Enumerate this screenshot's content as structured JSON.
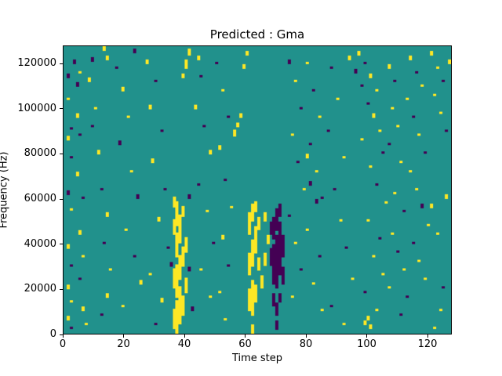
{
  "chart_data": {
    "type": "heatmap",
    "title": "Predicted : Gma",
    "xlabel": "Time step",
    "ylabel": "Frequency (Hz)",
    "n_time": 128,
    "n_freq": 128,
    "hz_per_bin": 1000,
    "x_range": [
      0,
      128
    ],
    "y_range": [
      0,
      128000
    ],
    "x_ticks": [
      0,
      20,
      40,
      60,
      80,
      100,
      120
    ],
    "y_ticks": [
      0,
      20000,
      40000,
      60000,
      80000,
      100000,
      120000
    ],
    "legend": "none",
    "grid": false,
    "colors": {
      "background": "#21918c",
      "high": "#fde725",
      "low": "#440154",
      "axis": "#000000",
      "figure_background": "#ffffff"
    },
    "cells_format": "[time_step, freq_bin_start, freq_bin_end_inclusive, value] where value 1 = high (yellow), -1 = low (purple); frequency Hz = bin * 1000",
    "cells": [
      [
        1,
        114,
        115,
        -1
      ],
      [
        1,
        104,
        104,
        1
      ],
      [
        2,
        91,
        91,
        -1
      ],
      [
        1,
        86,
        87,
        1
      ],
      [
        2,
        78,
        78,
        -1
      ],
      [
        1,
        62,
        63,
        -1
      ],
      [
        2,
        55,
        55,
        1
      ],
      [
        1,
        38,
        39,
        1
      ],
      [
        2,
        30,
        30,
        -1
      ],
      [
        1,
        20,
        21,
        1
      ],
      [
        2,
        14,
        14,
        1
      ],
      [
        1,
        6,
        7,
        1
      ],
      [
        2,
        2,
        2,
        -1
      ],
      [
        3,
        120,
        121,
        -1
      ],
      [
        4,
        110,
        111,
        -1
      ],
      [
        5,
        116,
        116,
        1
      ],
      [
        4,
        96,
        97,
        1
      ],
      [
        5,
        88,
        88,
        -1
      ],
      [
        4,
        70,
        71,
        1
      ],
      [
        6,
        60,
        60,
        -1
      ],
      [
        5,
        44,
        45,
        1
      ],
      [
        6,
        34,
        34,
        1
      ],
      [
        5,
        24,
        24,
        -1
      ],
      [
        6,
        10,
        11,
        1
      ],
      [
        7,
        4,
        4,
        1
      ],
      [
        9,
        121,
        122,
        -1
      ],
      [
        8,
        112,
        113,
        1
      ],
      [
        10,
        100,
        100,
        1
      ],
      [
        9,
        92,
        92,
        -1
      ],
      [
        11,
        80,
        81,
        1
      ],
      [
        13,
        126,
        127,
        1
      ],
      [
        14,
        122,
        123,
        1
      ],
      [
        12,
        64,
        64,
        -1
      ],
      [
        14,
        52,
        53,
        1
      ],
      [
        13,
        40,
        40,
        -1
      ],
      [
        15,
        28,
        28,
        1
      ],
      [
        14,
        16,
        17,
        1
      ],
      [
        12,
        8,
        8,
        -1
      ],
      [
        17,
        118,
        118,
        -1
      ],
      [
        19,
        108,
        109,
        1
      ],
      [
        23,
        125,
        126,
        -1
      ],
      [
        21,
        96,
        96,
        1
      ],
      [
        18,
        84,
        85,
        -1
      ],
      [
        22,
        72,
        72,
        1
      ],
      [
        24,
        60,
        61,
        -1
      ],
      [
        20,
        46,
        46,
        1
      ],
      [
        23,
        34,
        34,
        -1
      ],
      [
        25,
        22,
        23,
        1
      ],
      [
        19,
        12,
        12,
        1
      ],
      [
        27,
        120,
        121,
        1
      ],
      [
        30,
        112,
        112,
        -1
      ],
      [
        28,
        100,
        101,
        1
      ],
      [
        32,
        90,
        90,
        -1
      ],
      [
        29,
        76,
        77,
        1
      ],
      [
        33,
        64,
        64,
        -1
      ],
      [
        31,
        50,
        51,
        1
      ],
      [
        34,
        38,
        38,
        -1
      ],
      [
        28,
        26,
        26,
        1
      ],
      [
        32,
        14,
        15,
        1
      ],
      [
        30,
        4,
        4,
        -1
      ],
      [
        36,
        2,
        10,
        1
      ],
      [
        37,
        0,
        14,
        1
      ],
      [
        38,
        4,
        20,
        1
      ],
      [
        37,
        16,
        30,
        1
      ],
      [
        38,
        24,
        34,
        1
      ],
      [
        37,
        34,
        44,
        1
      ],
      [
        38,
        40,
        52,
        1
      ],
      [
        37,
        48,
        58,
        1
      ],
      [
        36,
        20,
        28,
        1
      ],
      [
        39,
        8,
        16,
        1
      ],
      [
        39,
        30,
        38,
        1
      ],
      [
        36,
        44,
        50,
        1
      ],
      [
        40,
        18,
        24,
        1
      ],
      [
        40,
        36,
        42,
        1
      ],
      [
        39,
        52,
        56,
        1
      ],
      [
        36,
        56,
        60,
        1
      ],
      [
        40,
        118,
        121,
        1
      ],
      [
        41,
        124,
        126,
        1
      ],
      [
        39,
        114,
        115,
        1
      ],
      [
        41,
        60,
        61,
        -1
      ],
      [
        35,
        30,
        31,
        -1
      ],
      [
        41,
        28,
        29,
        -1
      ],
      [
        42,
        10,
        11,
        -1
      ],
      [
        44,
        122,
        123,
        1
      ],
      [
        45,
        114,
        114,
        -1
      ],
      [
        43,
        100,
        101,
        1
      ],
      [
        46,
        92,
        92,
        -1
      ],
      [
        48,
        80,
        81,
        1
      ],
      [
        44,
        66,
        66,
        -1
      ],
      [
        47,
        54,
        54,
        1
      ],
      [
        49,
        40,
        40,
        -1
      ],
      [
        45,
        28,
        28,
        1
      ],
      [
        48,
        16,
        16,
        1
      ],
      [
        50,
        120,
        120,
        -1
      ],
      [
        52,
        108,
        108,
        1
      ],
      [
        54,
        96,
        96,
        -1
      ],
      [
        51,
        82,
        83,
        1
      ],
      [
        53,
        68,
        68,
        -1
      ],
      [
        55,
        56,
        56,
        1
      ],
      [
        52,
        42,
        43,
        1
      ],
      [
        54,
        30,
        30,
        -1
      ],
      [
        51,
        18,
        18,
        1
      ],
      [
        53,
        6,
        6,
        1
      ],
      [
        56,
        88,
        90,
        1
      ],
      [
        57,
        92,
        93,
        1
      ],
      [
        58,
        96,
        97,
        1
      ],
      [
        59,
        118,
        119,
        1
      ],
      [
        60,
        124,
        125,
        1
      ],
      [
        61,
        10,
        19,
        1
      ],
      [
        62,
        8,
        23,
        1
      ],
      [
        61,
        26,
        35,
        1
      ],
      [
        62,
        30,
        41,
        1
      ],
      [
        63,
        36,
        47,
        1
      ],
      [
        61,
        44,
        53,
        1
      ],
      [
        62,
        50,
        57,
        1
      ],
      [
        63,
        14,
        21,
        1
      ],
      [
        64,
        28,
        33,
        1
      ],
      [
        63,
        54,
        58,
        1
      ],
      [
        64,
        46,
        51,
        1
      ],
      [
        62,
        0,
        3,
        1
      ],
      [
        65,
        20,
        25,
        1
      ],
      [
        66,
        30,
        35,
        1
      ],
      [
        67,
        40,
        43,
        1
      ],
      [
        66,
        50,
        53,
        1
      ],
      [
        69,
        22,
        39,
        -1
      ],
      [
        70,
        20,
        43,
        -1
      ],
      [
        71,
        26,
        49,
        -1
      ],
      [
        70,
        46,
        55,
        -1
      ],
      [
        69,
        42,
        51,
        -1
      ],
      [
        71,
        52,
        57,
        -1
      ],
      [
        68,
        30,
        37,
        -1
      ],
      [
        72,
        34,
        43,
        -1
      ],
      [
        68,
        44,
        49,
        -1
      ],
      [
        72,
        22,
        29,
        -1
      ],
      [
        70,
        8,
        13,
        -1
      ],
      [
        69,
        12,
        17,
        -1
      ],
      [
        70,
        2,
        5,
        -1
      ],
      [
        71,
        14,
        17,
        -1
      ],
      [
        74,
        120,
        121,
        -1
      ],
      [
        76,
        112,
        112,
        1
      ],
      [
        78,
        100,
        100,
        -1
      ],
      [
        75,
        88,
        88,
        1
      ],
      [
        77,
        76,
        76,
        -1
      ],
      [
        79,
        64,
        64,
        1
      ],
      [
        74,
        52,
        52,
        -1
      ],
      [
        76,
        40,
        40,
        1
      ],
      [
        78,
        28,
        28,
        -1
      ],
      [
        75,
        16,
        16,
        1
      ],
      [
        80,
        120,
        120,
        1
      ],
      [
        82,
        108,
        108,
        -1
      ],
      [
        84,
        96,
        96,
        1
      ],
      [
        81,
        84,
        84,
        -1
      ],
      [
        83,
        72,
        72,
        1
      ],
      [
        85,
        60,
        60,
        -1
      ],
      [
        80,
        46,
        46,
        1
      ],
      [
        84,
        34,
        34,
        -1
      ],
      [
        82,
        22,
        22,
        1
      ],
      [
        85,
        10,
        10,
        1
      ],
      [
        81,
        66,
        67,
        -1
      ],
      [
        83,
        58,
        59,
        -1
      ],
      [
        80,
        78,
        79,
        1
      ],
      [
        88,
        118,
        118,
        -1
      ],
      [
        90,
        104,
        104,
        1
      ],
      [
        87,
        90,
        90,
        -1
      ],
      [
        92,
        78,
        78,
        1
      ],
      [
        89,
        64,
        64,
        -1
      ],
      [
        91,
        50,
        50,
        1
      ],
      [
        94,
        122,
        123,
        1
      ],
      [
        93,
        38,
        38,
        -1
      ],
      [
        95,
        24,
        24,
        1
      ],
      [
        88,
        12,
        12,
        -1
      ],
      [
        92,
        4,
        4,
        1
      ],
      [
        96,
        116,
        117,
        -1
      ],
      [
        98,
        110,
        110,
        -1
      ],
      [
        97,
        124,
        125,
        1
      ],
      [
        99,
        120,
        120,
        -1
      ],
      [
        101,
        114,
        115,
        1
      ],
      [
        103,
        108,
        108,
        1
      ],
      [
        100,
        102,
        102,
        -1
      ],
      [
        102,
        96,
        97,
        1
      ],
      [
        104,
        90,
        90,
        1
      ],
      [
        98,
        86,
        86,
        1
      ],
      [
        105,
        80,
        80,
        -1
      ],
      [
        101,
        74,
        74,
        1
      ],
      [
        103,
        66,
        66,
        -1
      ],
      [
        106,
        58,
        58,
        1
      ],
      [
        100,
        50,
        50,
        1
      ],
      [
        104,
        42,
        42,
        -1
      ],
      [
        102,
        34,
        34,
        1
      ],
      [
        105,
        26,
        26,
        1
      ],
      [
        99,
        18,
        18,
        -1
      ],
      [
        103,
        10,
        10,
        1
      ],
      [
        101,
        2,
        3,
        1
      ],
      [
        100,
        6,
        7,
        1
      ],
      [
        99,
        4,
        5,
        1
      ],
      [
        107,
        118,
        119,
        1
      ],
      [
        109,
        112,
        112,
        -1
      ],
      [
        108,
        100,
        100,
        1
      ],
      [
        110,
        92,
        92,
        1
      ],
      [
        107,
        84,
        84,
        -1
      ],
      [
        111,
        76,
        76,
        1
      ],
      [
        109,
        62,
        62,
        1
      ],
      [
        112,
        54,
        54,
        -1
      ],
      [
        108,
        44,
        44,
        1
      ],
      [
        110,
        36,
        36,
        -1
      ],
      [
        112,
        28,
        28,
        1
      ],
      [
        107,
        20,
        20,
        1
      ],
      [
        111,
        8,
        8,
        -1
      ],
      [
        114,
        122,
        123,
        1
      ],
      [
        116,
        116,
        116,
        -1
      ],
      [
        118,
        110,
        110,
        1
      ],
      [
        113,
        104,
        104,
        1
      ],
      [
        115,
        96,
        96,
        -1
      ],
      [
        117,
        88,
        88,
        1
      ],
      [
        119,
        80,
        80,
        -1
      ],
      [
        114,
        72,
        72,
        1
      ],
      [
        116,
        64,
        64,
        1
      ],
      [
        118,
        56,
        57,
        -1
      ],
      [
        120,
        48,
        48,
        1
      ],
      [
        115,
        40,
        40,
        -1
      ],
      [
        117,
        32,
        32,
        1
      ],
      [
        119,
        24,
        24,
        1
      ],
      [
        113,
        16,
        16,
        -1
      ],
      [
        121,
        124,
        125,
        1
      ],
      [
        123,
        118,
        118,
        1
      ],
      [
        125,
        112,
        112,
        -1
      ],
      [
        122,
        106,
        106,
        1
      ],
      [
        124,
        98,
        98,
        1
      ],
      [
        126,
        90,
        90,
        -1
      ],
      [
        121,
        56,
        57,
        1
      ],
      [
        123,
        44,
        44,
        1
      ],
      [
        125,
        20,
        20,
        -1
      ],
      [
        127,
        120,
        121,
        1
      ],
      [
        126,
        60,
        61,
        1
      ],
      [
        124,
        10,
        10,
        1
      ],
      [
        122,
        2,
        2,
        1
      ]
    ]
  }
}
